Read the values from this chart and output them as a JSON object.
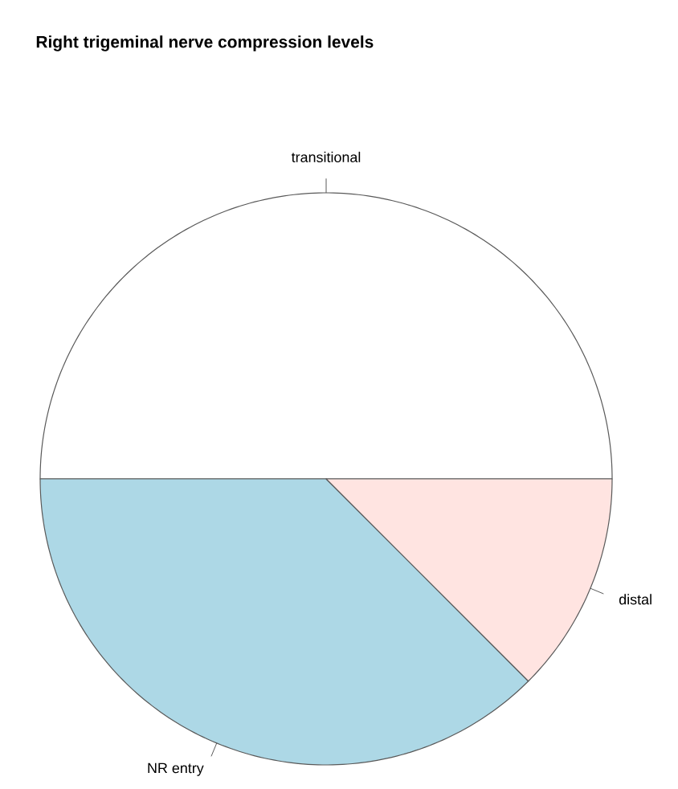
{
  "chart_data": {
    "type": "pie",
    "title": "Right trigeminal nerve compression levels",
    "categories": [
      "transitional",
      "NR entry",
      "distal"
    ],
    "values": [
      50,
      37.5,
      12.5
    ],
    "colors": [
      "#ffffff",
      "#add8e6",
      "#ffe4e1"
    ]
  }
}
